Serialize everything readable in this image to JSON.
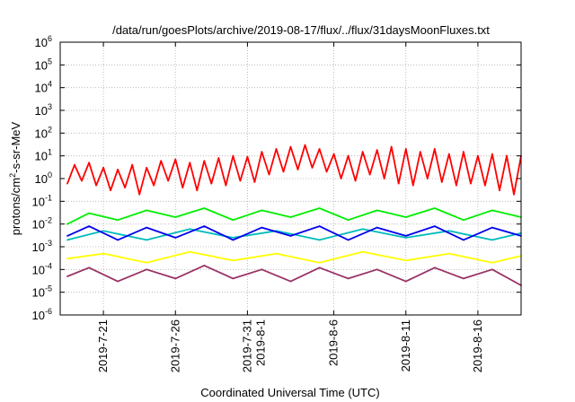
{
  "chart_data": {
    "type": "line",
    "title": "/data/run/goesPlots/archive/2019-08-17/flux/../flux/31daysMoonFluxes.txt",
    "xlabel": "Coordinated Universal Time (UTC)",
    "ylabel": "protons/cm2-s-sr-MeV",
    "ylabel_parts": {
      "base": "protons/cm",
      "sup": "2",
      "rest": "-s-sr-MeV"
    },
    "yscale": "log",
    "ylim": [
      1e-06,
      1000000.0
    ],
    "y_ticks": [
      {
        "value": 1e-06,
        "exp": "-6"
      },
      {
        "value": 1e-05,
        "exp": "-5"
      },
      {
        "value": 0.0001,
        "exp": "-4"
      },
      {
        "value": 0.001,
        "exp": "-3"
      },
      {
        "value": 0.01,
        "exp": "-2"
      },
      {
        "value": 0.1,
        "exp": "-1"
      },
      {
        "value": 1,
        "exp": "0"
      },
      {
        "value": 10,
        "exp": "1"
      },
      {
        "value": 100,
        "exp": "2"
      },
      {
        "value": 1000,
        "exp": "3"
      },
      {
        "value": 10000.0,
        "exp": "4"
      },
      {
        "value": 100000.0,
        "exp": "5"
      },
      {
        "value": 1000000.0,
        "exp": "6"
      }
    ],
    "y_tick_base": "10",
    "x_range": [
      "2019-07-18",
      "2019-08-19"
    ],
    "x_ticks": [
      {
        "date": "2019-07-21",
        "lines": [
          "2019-7-21"
        ]
      },
      {
        "date": "2019-07-26",
        "lines": [
          "2019-7-26"
        ]
      },
      {
        "date": "2019-07-31",
        "lines": [
          "2019-7-31",
          "2019-8-1"
        ]
      },
      {
        "date": "2019-08-06",
        "lines": [
          "2019-8-6"
        ]
      },
      {
        "date": "2019-08-11",
        "lines": [
          "2019-8-11"
        ]
      },
      {
        "date": "2019-08-16",
        "lines": [
          "2019-8-16"
        ]
      }
    ],
    "grid": true,
    "series": [
      {
        "color": "#ff0000",
        "values": [
          {
            "x": "2019-07-18T12:00",
            "y": 0.6
          },
          {
            "x": "2019-07-19T00:00",
            "y": 4.0
          },
          {
            "x": "2019-07-19T12:00",
            "y": 0.8
          },
          {
            "x": "2019-07-20T00:00",
            "y": 5.0
          },
          {
            "x": "2019-07-20T12:00",
            "y": 0.5
          },
          {
            "x": "2019-07-21T00:00",
            "y": 3.0
          },
          {
            "x": "2019-07-21T12:00",
            "y": 0.3
          },
          {
            "x": "2019-07-22T00:00",
            "y": 2.5
          },
          {
            "x": "2019-07-22T12:00",
            "y": 0.4
          },
          {
            "x": "2019-07-23T00:00",
            "y": 4.0
          },
          {
            "x": "2019-07-23T12:00",
            "y": 0.2
          },
          {
            "x": "2019-07-24T00:00",
            "y": 3.0
          },
          {
            "x": "2019-07-24T12:00",
            "y": 0.5
          },
          {
            "x": "2019-07-25T00:00",
            "y": 6.0
          },
          {
            "x": "2019-07-25T12:00",
            "y": 0.8
          },
          {
            "x": "2019-07-26T00:00",
            "y": 7.0
          },
          {
            "x": "2019-07-26T12:00",
            "y": 0.4
          },
          {
            "x": "2019-07-27T00:00",
            "y": 5.0
          },
          {
            "x": "2019-07-27T12:00",
            "y": 0.3
          },
          {
            "x": "2019-07-28T00:00",
            "y": 6.0
          },
          {
            "x": "2019-07-28T12:00",
            "y": 0.6
          },
          {
            "x": "2019-07-29T00:00",
            "y": 8.0
          },
          {
            "x": "2019-07-29T12:00",
            "y": 0.5
          },
          {
            "x": "2019-07-30T00:00",
            "y": 10.0
          },
          {
            "x": "2019-07-30T12:00",
            "y": 0.8
          },
          {
            "x": "2019-07-31T00:00",
            "y": 9.0
          },
          {
            "x": "2019-07-31T12:00",
            "y": 0.7
          },
          {
            "x": "2019-08-01T00:00",
            "y": 15.0
          },
          {
            "x": "2019-08-01T12:00",
            "y": 1.5
          },
          {
            "x": "2019-08-02T00:00",
            "y": 20.0
          },
          {
            "x": "2019-08-02T12:00",
            "y": 2.0
          },
          {
            "x": "2019-08-03T00:00",
            "y": 25.0
          },
          {
            "x": "2019-08-03T12:00",
            "y": 2.5
          },
          {
            "x": "2019-08-04T00:00",
            "y": 30.0
          },
          {
            "x": "2019-08-04T12:00",
            "y": 3.0
          },
          {
            "x": "2019-08-05T00:00",
            "y": 20.0
          },
          {
            "x": "2019-08-05T12:00",
            "y": 2.0
          },
          {
            "x": "2019-08-06T00:00",
            "y": 12.0
          },
          {
            "x": "2019-08-06T12:00",
            "y": 1.0
          },
          {
            "x": "2019-08-07T00:00",
            "y": 10.0
          },
          {
            "x": "2019-08-07T12:00",
            "y": 0.8
          },
          {
            "x": "2019-08-08T00:00",
            "y": 15.0
          },
          {
            "x": "2019-08-08T12:00",
            "y": 1.5
          },
          {
            "x": "2019-08-09T00:00",
            "y": 18.0
          },
          {
            "x": "2019-08-09T12:00",
            "y": 1.0
          },
          {
            "x": "2019-08-10T00:00",
            "y": 25.0
          },
          {
            "x": "2019-08-10T12:00",
            "y": 0.6
          },
          {
            "x": "2019-08-11T00:00",
            "y": 20.0
          },
          {
            "x": "2019-08-11T12:00",
            "y": 0.5
          },
          {
            "x": "2019-08-12T00:00",
            "y": 15.0
          },
          {
            "x": "2019-08-12T12:00",
            "y": 1.0
          },
          {
            "x": "2019-08-13T00:00",
            "y": 20.0
          },
          {
            "x": "2019-08-13T12:00",
            "y": 0.7
          },
          {
            "x": "2019-08-14T00:00",
            "y": 12.0
          },
          {
            "x": "2019-08-14T12:00",
            "y": 0.5
          },
          {
            "x": "2019-08-15T00:00",
            "y": 15.0
          },
          {
            "x": "2019-08-15T12:00",
            "y": 0.6
          },
          {
            "x": "2019-08-16T00:00",
            "y": 10.0
          },
          {
            "x": "2019-08-16T12:00",
            "y": 0.5
          },
          {
            "x": "2019-08-17T00:00",
            "y": 12.0
          },
          {
            "x": "2019-08-17T12:00",
            "y": 0.3
          },
          {
            "x": "2019-08-18T00:00",
            "y": 10.0
          },
          {
            "x": "2019-08-18T12:00",
            "y": 0.2
          },
          {
            "x": "2019-08-19T00:00",
            "y": 10.0
          }
        ]
      },
      {
        "color": "#00ee00",
        "values": [
          {
            "x": "2019-07-18T12:00",
            "y": 0.01
          },
          {
            "x": "2019-07-20T00:00",
            "y": 0.03
          },
          {
            "x": "2019-07-22T00:00",
            "y": 0.015
          },
          {
            "x": "2019-07-24T00:00",
            "y": 0.04
          },
          {
            "x": "2019-07-26T00:00",
            "y": 0.02
          },
          {
            "x": "2019-07-28T00:00",
            "y": 0.05
          },
          {
            "x": "2019-07-30T00:00",
            "y": 0.015
          },
          {
            "x": "2019-08-01T00:00",
            "y": 0.04
          },
          {
            "x": "2019-08-03T00:00",
            "y": 0.02
          },
          {
            "x": "2019-08-05T00:00",
            "y": 0.05
          },
          {
            "x": "2019-08-07T00:00",
            "y": 0.015
          },
          {
            "x": "2019-08-09T00:00",
            "y": 0.04
          },
          {
            "x": "2019-08-11T00:00",
            "y": 0.02
          },
          {
            "x": "2019-08-13T00:00",
            "y": 0.05
          },
          {
            "x": "2019-08-15T00:00",
            "y": 0.015
          },
          {
            "x": "2019-08-17T00:00",
            "y": 0.04
          },
          {
            "x": "2019-08-19T00:00",
            "y": 0.02
          }
        ]
      },
      {
        "color": "#00bbbb",
        "values": [
          {
            "x": "2019-07-18T12:00",
            "y": 0.002
          },
          {
            "x": "2019-07-21T00:00",
            "y": 0.005
          },
          {
            "x": "2019-07-24T00:00",
            "y": 0.002
          },
          {
            "x": "2019-07-27T00:00",
            "y": 0.006
          },
          {
            "x": "2019-07-30T00:00",
            "y": 0.0025
          },
          {
            "x": "2019-08-02T00:00",
            "y": 0.005
          },
          {
            "x": "2019-08-05T00:00",
            "y": 0.002
          },
          {
            "x": "2019-08-08T00:00",
            "y": 0.006
          },
          {
            "x": "2019-08-11T00:00",
            "y": 0.0025
          },
          {
            "x": "2019-08-14T00:00",
            "y": 0.005
          },
          {
            "x": "2019-08-17T00:00",
            "y": 0.002
          },
          {
            "x": "2019-08-19T00:00",
            "y": 0.004
          }
        ]
      },
      {
        "color": "#0000ee",
        "values": [
          {
            "x": "2019-07-18T12:00",
            "y": 0.003
          },
          {
            "x": "2019-07-20T00:00",
            "y": 0.008
          },
          {
            "x": "2019-07-22T00:00",
            "y": 0.002
          },
          {
            "x": "2019-07-24T00:00",
            "y": 0.007
          },
          {
            "x": "2019-07-26T00:00",
            "y": 0.0025
          },
          {
            "x": "2019-07-28T00:00",
            "y": 0.008
          },
          {
            "x": "2019-07-30T00:00",
            "y": 0.002
          },
          {
            "x": "2019-08-01T00:00",
            "y": 0.007
          },
          {
            "x": "2019-08-03T00:00",
            "y": 0.003
          },
          {
            "x": "2019-08-05T00:00",
            "y": 0.008
          },
          {
            "x": "2019-08-07T00:00",
            "y": 0.002
          },
          {
            "x": "2019-08-09T00:00",
            "y": 0.007
          },
          {
            "x": "2019-08-11T00:00",
            "y": 0.003
          },
          {
            "x": "2019-08-13T00:00",
            "y": 0.008
          },
          {
            "x": "2019-08-15T00:00",
            "y": 0.002
          },
          {
            "x": "2019-08-17T00:00",
            "y": 0.007
          },
          {
            "x": "2019-08-19T00:00",
            "y": 0.003
          }
        ]
      },
      {
        "color": "#ffff00",
        "values": [
          {
            "x": "2019-07-18T12:00",
            "y": 0.0003
          },
          {
            "x": "2019-07-21T00:00",
            "y": 0.0005
          },
          {
            "x": "2019-07-24T00:00",
            "y": 0.0002
          },
          {
            "x": "2019-07-27T00:00",
            "y": 0.0006
          },
          {
            "x": "2019-07-30T00:00",
            "y": 0.00025
          },
          {
            "x": "2019-08-02T00:00",
            "y": 0.0005
          },
          {
            "x": "2019-08-05T00:00",
            "y": 0.0002
          },
          {
            "x": "2019-08-08T00:00",
            "y": 0.0006
          },
          {
            "x": "2019-08-11T00:00",
            "y": 0.00025
          },
          {
            "x": "2019-08-14T00:00",
            "y": 0.0005
          },
          {
            "x": "2019-08-17T00:00",
            "y": 0.0002
          },
          {
            "x": "2019-08-19T00:00",
            "y": 0.0004
          }
        ]
      },
      {
        "color": "#993366",
        "values": [
          {
            "x": "2019-07-18T12:00",
            "y": 5e-05
          },
          {
            "x": "2019-07-20T00:00",
            "y": 0.00012
          },
          {
            "x": "2019-07-22T00:00",
            "y": 3e-05
          },
          {
            "x": "2019-07-24T00:00",
            "y": 0.0001
          },
          {
            "x": "2019-07-26T00:00",
            "y": 4e-05
          },
          {
            "x": "2019-07-28T00:00",
            "y": 0.00015
          },
          {
            "x": "2019-07-30T00:00",
            "y": 4e-05
          },
          {
            "x": "2019-08-01T00:00",
            "y": 0.0001
          },
          {
            "x": "2019-08-03T00:00",
            "y": 3e-05
          },
          {
            "x": "2019-08-05T00:00",
            "y": 0.00012
          },
          {
            "x": "2019-08-07T00:00",
            "y": 4e-05
          },
          {
            "x": "2019-08-09T00:00",
            "y": 0.0001
          },
          {
            "x": "2019-08-11T00:00",
            "y": 3e-05
          },
          {
            "x": "2019-08-13T00:00",
            "y": 0.00012
          },
          {
            "x": "2019-08-15T00:00",
            "y": 4e-05
          },
          {
            "x": "2019-08-17T00:00",
            "y": 0.0001
          },
          {
            "x": "2019-08-19T00:00",
            "y": 2e-05
          }
        ]
      }
    ]
  }
}
